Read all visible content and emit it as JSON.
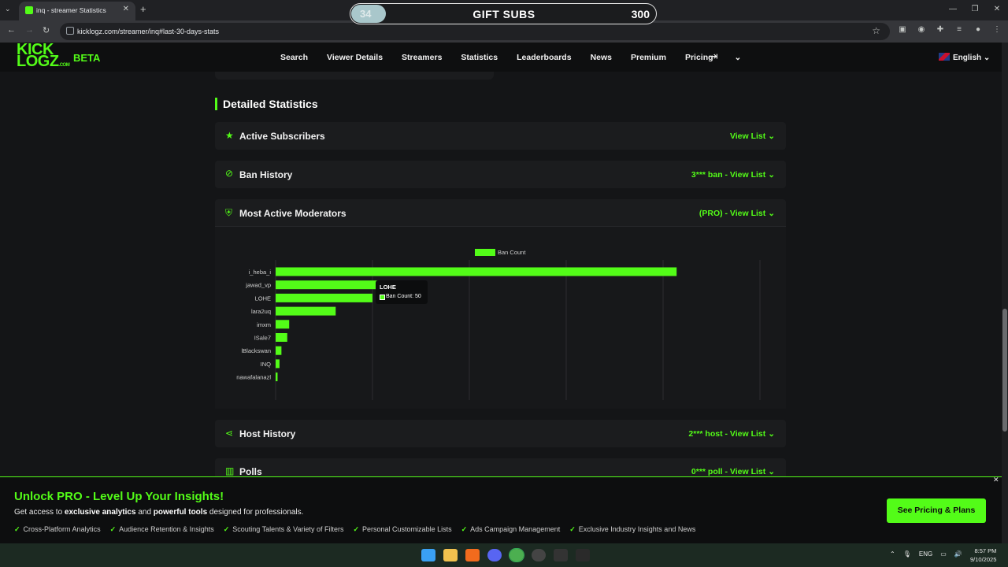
{
  "browser": {
    "tab_title": "inq - streamer Statistics",
    "url": "kicklogz.com/streamer/inq#last-30-days-stats",
    "tab_list_icon": "chevron-down-icon",
    "new_tab_label": "+"
  },
  "overlay": {
    "gift_current": "34",
    "gift_label": "GIFT SUBS",
    "gift_goal": "300",
    "progress_fraction": 0.113
  },
  "site": {
    "logo_line1": "KICK",
    "logo_line2": "LOGZ",
    "logo_suffix": ".COM",
    "beta": "BETA",
    "nav": [
      "Search",
      "Viewer Details",
      "Streamers",
      "Statistics",
      "Leaderboards",
      "News",
      "Premium",
      "Pricing"
    ],
    "language": "English"
  },
  "section": {
    "title": "Detailed Statistics"
  },
  "panels": [
    {
      "title": "Active Subscribers",
      "link": "View List",
      "icon": "star-icon"
    },
    {
      "title": "Ban History",
      "link": "3*** ban - View List",
      "icon": "ban-icon"
    },
    {
      "title": "Most Active Moderators",
      "link": "(PRO) - View List",
      "icon": "shield-icon"
    },
    {
      "title": "Host History",
      "link": "2*** host - View List",
      "icon": "share-icon"
    },
    {
      "title": "Polls",
      "link": "0*** poll - View List",
      "icon": "poll-icon"
    }
  ],
  "chart_data": {
    "type": "bar",
    "orientation": "horizontal",
    "categories": [
      "i_heba_i",
      "jawad_vp",
      "LOHE",
      "lara2uq",
      "imxm",
      "ISale7",
      "lBlackswan",
      "INQ",
      "nawafalanazl"
    ],
    "series": [
      {
        "name": "Ban Count",
        "values": [
          207,
          68,
          50,
          31,
          7,
          6,
          3,
          2,
          1
        ]
      }
    ],
    "xlim": [
      0,
      250
    ],
    "xticks": [
      "0",
      "50",
      "100",
      "150",
      "200",
      "250"
    ],
    "legend": "top-center",
    "grid": true,
    "bar_color": "#53fc18"
  },
  "tooltip": {
    "title": "LOHE",
    "text": "Ban Count: 50"
  },
  "promo": {
    "title": "Unlock PRO - Level Up Your Insights!",
    "sub_pre": "Get access to ",
    "sub_b1": "exclusive analytics",
    "sub_mid": " and ",
    "sub_b2": "powerful tools",
    "sub_post": " designed for professionals.",
    "features": [
      "Cross-Platform Analytics",
      "Audience Retention & Insights",
      "Scouting Talents & Variety of Filters",
      "Personal Customizable Lists",
      "Ads Campaign Management",
      "Exclusive Industry Insights and News"
    ],
    "button": "See Pricing & Plans"
  },
  "taskbar": {
    "lang": "ENG",
    "time": "8:57 PM",
    "date": "9/10/2025"
  }
}
